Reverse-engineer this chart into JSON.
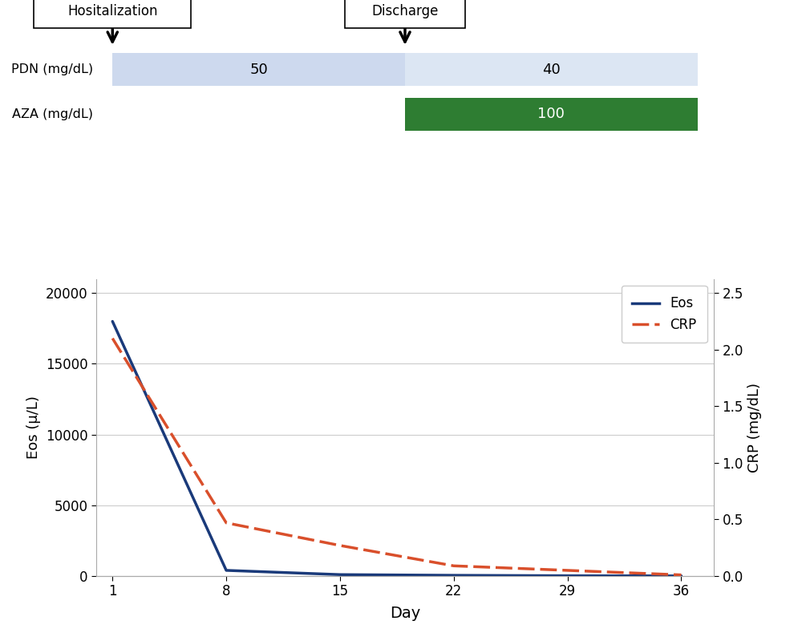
{
  "hospitalization_day": 1,
  "discharge_day": 19,
  "pdn_bar1": {
    "start": 1,
    "end": 19,
    "value": "50",
    "color": "#cdd9ee"
  },
  "pdn_bar2": {
    "start": 19,
    "end": 37,
    "value": "40",
    "color": "#dce6f3"
  },
  "aza_bar": {
    "start": 19,
    "end": 37,
    "value": "100",
    "color": "#2e7d32"
  },
  "pdn_label": "PDN (mg/dL)",
  "aza_label": "AZA (mg/dL)",
  "hospitalization_label": "Hositalization",
  "discharge_label": "Discharge",
  "eos_days": [
    1,
    8,
    15,
    22,
    29,
    36
  ],
  "eos_values": [
    18000,
    400,
    100,
    50,
    20,
    10
  ],
  "crp_days": [
    1,
    8,
    15,
    22,
    29,
    36
  ],
  "crp_values": [
    2.1,
    0.47,
    0.27,
    0.09,
    0.05,
    0.01
  ],
  "eos_color": "#1a3a7a",
  "crp_color": "#d94f2b",
  "xlabel": "Day",
  "ylabel_left": "Eos (μ/L)",
  "ylabel_right": "CRP (mg/dL)",
  "eos_yticks": [
    0,
    5000,
    10000,
    15000,
    20000
  ],
  "crp_yticks": [
    0.0,
    0.5,
    1.0,
    1.5,
    2.0,
    2.5
  ],
  "xticks": [
    1,
    8,
    15,
    22,
    29,
    36
  ],
  "xlim": [
    0,
    38
  ],
  "eos_ylim": [
    0,
    21000
  ],
  "crp_ylim": [
    0,
    2.625
  ],
  "legend_eos": "Eos",
  "legend_crp": "CRP",
  "bg_color": "#ffffff",
  "grid_color": "#cccccc"
}
